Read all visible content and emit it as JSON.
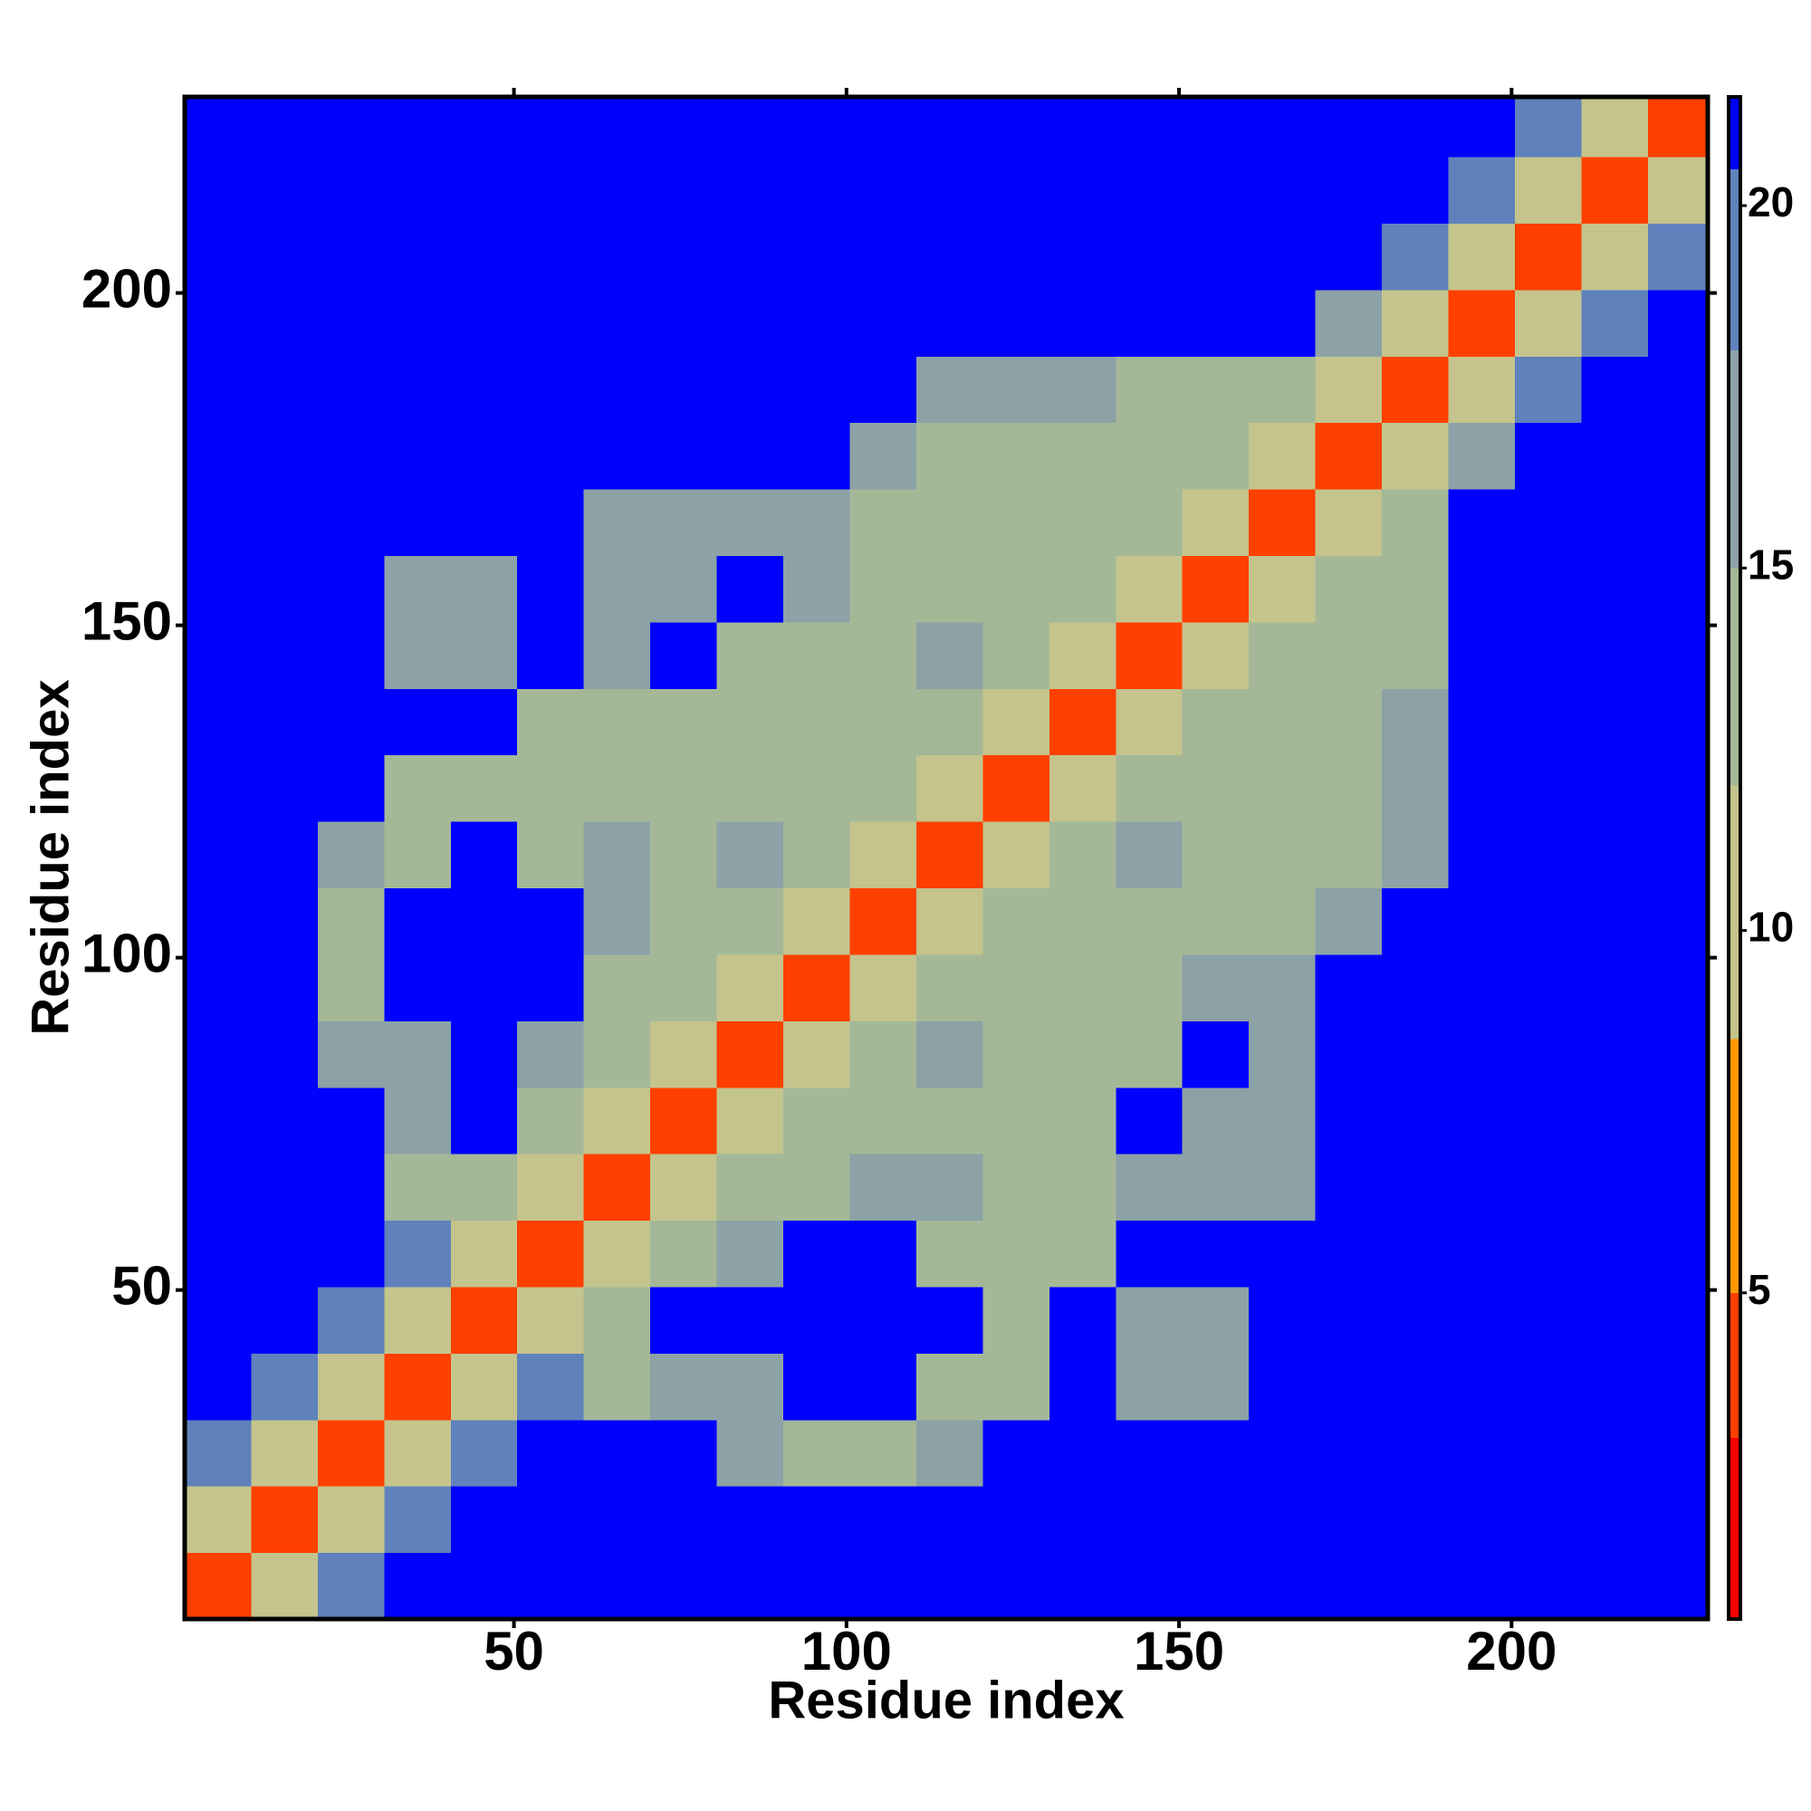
{
  "chart_data": {
    "type": "heatmap",
    "xlabel": "Residue index",
    "ylabel": "Residue index",
    "xbins": [
      0.5,
      10.5,
      20.5,
      30.5,
      40.5,
      50.5,
      60.5,
      70.5,
      80.5,
      90.5,
      100.5,
      110.5,
      120.5,
      130.5,
      140.5,
      150.5,
      160.5,
      170.5,
      180.5,
      190.5,
      200.5,
      210.5,
      220.5,
      229.5
    ],
    "ybins": [
      0.5,
      10.5,
      20.5,
      30.5,
      40.5,
      50.5,
      60.5,
      70.5,
      80.5,
      90.5,
      100.5,
      110.5,
      120.5,
      130.5,
      140.5,
      150.5,
      160.5,
      170.5,
      180.5,
      190.5,
      200.5,
      210.5,
      220.5,
      229.5
    ],
    "values": [
      [
        4,
        11,
        19,
        21,
        21,
        21,
        21,
        21,
        21,
        21,
        21,
        21,
        21,
        21,
        21,
        21,
        21,
        21,
        21,
        21,
        21,
        21,
        21
      ],
      [
        11,
        4,
        11,
        19,
        21,
        21,
        21,
        21,
        21,
        21,
        21,
        21,
        21,
        21,
        21,
        21,
        21,
        21,
        21,
        21,
        21,
        21,
        21
      ],
      [
        19,
        11,
        4,
        11,
        19,
        21,
        21,
        21,
        15,
        14,
        14,
        15,
        21,
        21,
        21,
        21,
        21,
        21,
        21,
        21,
        21,
        21,
        21
      ],
      [
        21,
        19,
        11,
        4,
        11,
        19,
        14,
        16,
        16,
        21,
        21,
        13,
        14,
        21,
        16,
        16,
        21,
        21,
        21,
        21,
        21,
        21,
        21
      ],
      [
        21,
        21,
        19,
        11,
        4,
        11,
        13,
        21,
        21,
        21,
        21,
        21,
        13,
        21,
        17,
        17,
        21,
        21,
        21,
        21,
        21,
        21,
        21
      ],
      [
        21,
        21,
        21,
        19,
        11,
        4,
        11,
        14,
        15,
        21,
        21,
        14,
        13,
        14,
        21,
        21,
        21,
        21,
        21,
        21,
        21,
        21,
        21
      ],
      [
        21,
        21,
        21,
        14,
        13,
        11,
        4,
        11,
        13,
        14,
        15,
        15,
        13,
        13,
        15,
        17,
        17,
        21,
        21,
        21,
        21,
        21,
        21
      ],
      [
        21,
        21,
        21,
        16,
        21,
        14,
        11,
        4,
        11,
        13,
        13,
        14,
        13,
        14,
        21,
        17,
        17,
        21,
        21,
        21,
        21,
        21,
        21
      ],
      [
        21,
        21,
        15,
        16,
        21,
        15,
        13,
        11,
        4,
        11,
        14,
        15,
        14,
        14,
        14,
        21,
        17,
        21,
        21,
        21,
        21,
        21,
        21
      ],
      [
        21,
        21,
        14,
        21,
        21,
        21,
        14,
        13,
        11,
        4,
        11,
        14,
        14,
        14,
        14,
        15,
        16,
        21,
        21,
        21,
        21,
        21,
        21
      ],
      [
        21,
        21,
        14,
        21,
        21,
        21,
        15,
        13,
        14,
        11,
        4,
        11,
        13,
        13,
        14,
        14,
        13,
        15,
        21,
        21,
        21,
        21,
        21
      ],
      [
        21,
        21,
        15,
        13,
        21,
        14,
        15,
        14,
        15,
        14,
        11,
        4,
        11,
        14,
        15,
        14,
        13,
        14,
        15,
        21,
        21,
        21,
        21
      ],
      [
        21,
        21,
        21,
        14,
        13,
        13,
        13,
        13,
        14,
        14,
        13,
        11,
        4,
        11,
        13,
        14,
        13,
        13,
        15,
        21,
        21,
        21,
        21
      ],
      [
        21,
        21,
        21,
        21,
        21,
        14,
        13,
        14,
        14,
        14,
        13,
        14,
        11,
        4,
        11,
        14,
        13,
        13,
        15,
        21,
        21,
        21,
        21
      ],
      [
        21,
        21,
        21,
        16,
        17,
        21,
        15,
        21,
        14,
        14,
        14,
        15,
        13,
        11,
        4,
        11,
        13,
        13,
        14,
        21,
        21,
        21,
        21
      ],
      [
        21,
        21,
        21,
        16,
        17,
        21,
        17,
        17,
        21,
        15,
        14,
        14,
        14,
        14,
        11,
        4,
        11,
        12,
        14,
        21,
        21,
        21,
        21
      ],
      [
        21,
        21,
        21,
        21,
        21,
        21,
        17,
        17,
        17,
        16,
        13,
        13,
        13,
        13,
        13,
        11,
        4,
        11,
        13,
        21,
        21,
        21,
        21
      ],
      [
        21,
        21,
        21,
        21,
        21,
        21,
        21,
        21,
        21,
        21,
        15,
        14,
        13,
        13,
        13,
        12,
        11,
        4,
        11,
        15,
        21,
        21,
        21
      ],
      [
        21,
        21,
        21,
        21,
        21,
        21,
        21,
        21,
        21,
        21,
        21,
        15,
        15,
        15,
        14,
        14,
        13,
        11,
        4,
        11,
        19,
        21,
        21
      ],
      [
        21,
        21,
        21,
        21,
        21,
        21,
        21,
        21,
        21,
        21,
        21,
        21,
        21,
        21,
        21,
        21,
        21,
        15,
        11,
        4,
        11,
        19,
        21
      ],
      [
        21,
        21,
        21,
        21,
        21,
        21,
        21,
        21,
        21,
        21,
        21,
        21,
        21,
        21,
        21,
        21,
        21,
        21,
        19,
        11,
        4,
        11,
        19
      ],
      [
        21,
        21,
        21,
        21,
        21,
        21,
        21,
        21,
        21,
        21,
        21,
        21,
        21,
        21,
        21,
        21,
        21,
        21,
        21,
        19,
        11,
        4,
        11
      ],
      [
        21,
        21,
        21,
        21,
        21,
        21,
        21,
        21,
        21,
        21,
        21,
        21,
        21,
        21,
        21,
        21,
        21,
        21,
        21,
        21,
        19,
        11,
        4
      ]
    ],
    "xlim": [
      0.5,
      229.5
    ],
    "ylim": [
      0.5,
      229.5
    ],
    "xticks": [
      50,
      100,
      150,
      200
    ],
    "yticks": [
      50,
      100,
      150,
      200
    ],
    "colorbar": {
      "lim": [
        0.5,
        21.5
      ],
      "ticks": [
        5,
        10,
        15,
        20
      ],
      "edges": [
        0.5,
        3,
        5,
        8.5,
        12,
        15,
        18,
        20.5,
        21.5
      ],
      "colors": [
        "#ff0000",
        "#ff4000",
        "#ff9900",
        "#c4c48c",
        "#a4b898",
        "#8ca2a6",
        "#5f82bc",
        "#0000ff"
      ]
    }
  }
}
